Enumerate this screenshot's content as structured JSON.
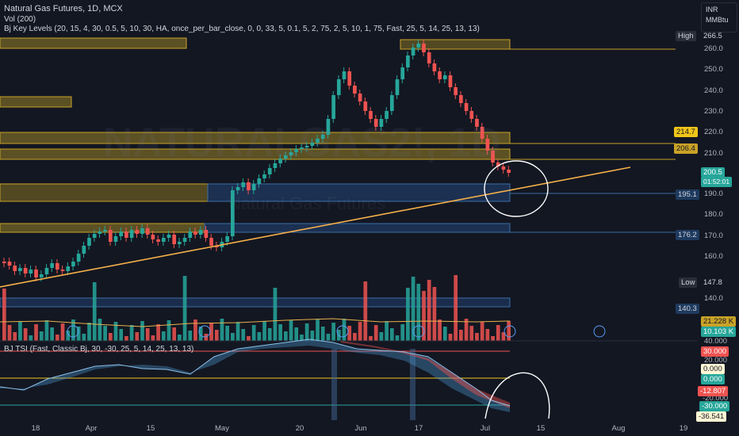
{
  "header": {
    "symbol_line": "Natural Gas Futures, 1D, MCX",
    "vol_line": "Vol (200)",
    "key_levels_line": "Bj Key Levels (20, 15, 4, 30, 0.5, 5, 10, 30, HA, once_per_bar_close, 0, 0, 33, 5, 0.1, 5, 2, 75, 2, 5, 10, 1, 75, Fast, 25, 5, 14, 25, 13, 13)",
    "tsi_line": "BJ TSI (Fast, Classic Bj, 30, -30, 25, 5, 14, 25, 13, 13)"
  },
  "units": {
    "currency": "INR",
    "unit": "MMBtu"
  },
  "watermark": {
    "symbol": "NATURALGAS2!, 1D",
    "name": "Natural Gas Futures"
  },
  "price_axis": [
    "260.0",
    "250.0",
    "240.0",
    "230.0",
    "220.0",
    "210.0",
    "190.0",
    "180.0",
    "170.0",
    "160.0",
    "140.0"
  ],
  "tags": {
    "high_label": "High",
    "high_value": "266.5",
    "level1": "214.7",
    "level2": "206.4",
    "current_price": "200.5",
    "countdown": "01:52:01",
    "level3": "195.1",
    "level4": "176.2",
    "low_label": "Low",
    "low_value": "147.8",
    "level5": "140.3",
    "vol1": "21.228 K",
    "vol2": "10.103 K"
  },
  "tsi_axis": {
    "t40": "40.000",
    "t30": "30.000",
    "t20": "20.000",
    "t0a": "0.000",
    "t0b": "0.000",
    "tm12": "-12.807",
    "tm20": "-20.000",
    "tm30": "-30.000",
    "tm36": "-36.541"
  },
  "x_axis": [
    "18",
    "Apr",
    "15",
    "May",
    "20",
    "Jun",
    "17",
    "Jul",
    "15",
    "Aug",
    "19"
  ],
  "colors": {
    "up": "#26a69a",
    "down": "#ef5350",
    "level": "#f0c419",
    "trendline": "#f5b04a",
    "bg": "#131722"
  }
}
